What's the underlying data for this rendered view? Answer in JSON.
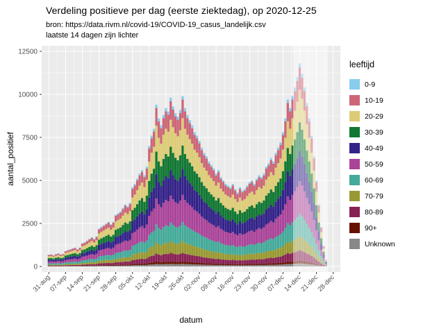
{
  "title": "Verdeling positieve per dag (eerste ziektedag), op 2020-12-25",
  "subtitle_source": "bron: https://data.rivm.nl/covid-19/COVID-19_casus_landelijk.csv",
  "subtitle_note": "laatste 14 dagen zijn lichter",
  "axes": {
    "x_label": "datum",
    "y_label": "aantal_positief"
  },
  "panel": {
    "bg": "#EBEBEB",
    "grid": "#FFFFFF",
    "tick_color": "#333333",
    "tick_text_color": "#4D4D4D"
  },
  "legend": {
    "title": "leeftijd",
    "entries": [
      {
        "label": "0-9",
        "color": "#88CCEE"
      },
      {
        "label": "10-19",
        "color": "#CC6677"
      },
      {
        "label": "20-29",
        "color": "#DDCC77"
      },
      {
        "label": "30-39",
        "color": "#117733"
      },
      {
        "label": "40-49",
        "color": "#332288"
      },
      {
        "label": "50-59",
        "color": "#AA4499"
      },
      {
        "label": "60-69",
        "color": "#44AA99"
      },
      {
        "label": "70-79",
        "color": "#999933"
      },
      {
        "label": "80-89",
        "color": "#882255"
      },
      {
        "label": "90+",
        "color": "#661100"
      },
      {
        "label": "Unknown",
        "color": "#888888"
      }
    ]
  },
  "chart_data": {
    "type": "bar",
    "stacked": true,
    "x_start_date": "2020-08-31",
    "x_end_date": "2020-12-25",
    "ylim": [
      0,
      12500
    ],
    "y_ticks": [
      0,
      2500,
      5000,
      7500,
      10000,
      12500
    ],
    "x_ticks": [
      {
        "label": "31-aug",
        "day": 0
      },
      {
        "label": "07-sep",
        "day": 7
      },
      {
        "label": "14-sep",
        "day": 14
      },
      {
        "label": "21-sep",
        "day": 21
      },
      {
        "label": "28-sep",
        "day": 28
      },
      {
        "label": "05-okt",
        "day": 35
      },
      {
        "label": "12-okt",
        "day": 42
      },
      {
        "label": "19-okt",
        "day": 49
      },
      {
        "label": "26-okt",
        "day": 56
      },
      {
        "label": "02-nov",
        "day": 63
      },
      {
        "label": "09-nov",
        "day": 70
      },
      {
        "label": "16-nov",
        "day": 77
      },
      {
        "label": "23-nov",
        "day": 84
      },
      {
        "label": "30-nov",
        "day": 91
      },
      {
        "label": "07-dec",
        "day": 98
      },
      {
        "label": "14-dec",
        "day": 105
      },
      {
        "label": "21-dec",
        "day": 112
      },
      {
        "label": "28-dec",
        "day": 119
      }
    ],
    "faded_last_days": 14,
    "totals_per_day": [
      680,
      700,
      650,
      720,
      760,
      700,
      730,
      900,
      950,
      1000,
      1050,
      1100,
      1000,
      1100,
      1350,
      1400,
      1500,
      1600,
      1700,
      1600,
      1750,
      2200,
      2300,
      2400,
      2500,
      2600,
      2450,
      2600,
      3000,
      3100,
      3200,
      3400,
      3600,
      3500,
      3700,
      4600,
      4800,
      5100,
      5400,
      5600,
      5300,
      5800,
      7000,
      7600,
      8000,
      9400,
      8600,
      8200,
      8800,
      9200,
      9000,
      9800,
      9300,
      8900,
      8700,
      9100,
      9900,
      9200,
      8800,
      8500,
      8200,
      7800,
      7600,
      7300,
      6900,
      6600,
      6400,
      6100,
      5900,
      5700,
      5400,
      5600,
      5200,
      5000,
      4800,
      4700,
      4600,
      4800,
      4500,
      4300,
      4600,
      4400,
      4500,
      4700,
      4900,
      5000,
      4800,
      5100,
      5300,
      5200,
      5400,
      5800,
      6000,
      6300,
      6100,
      6600,
      6900,
      7200,
      7800,
      8600,
      9700,
      9200,
      9900,
      10400,
      11000,
      11800,
      11200,
      10400,
      9500,
      8600,
      7600,
      6400,
      5000,
      3600,
      2300,
      1200,
      400
    ],
    "stack_bottom_to_top": [
      "Unknown",
      "90+",
      "80-89",
      "70-79",
      "60-69",
      "50-59",
      "40-49",
      "30-39",
      "20-29",
      "10-19",
      "0-9"
    ],
    "age_share_estimate": {
      "0-9": 0.02,
      "10-19": 0.11,
      "20-29": 0.16,
      "30-39": 0.14,
      "40-49": 0.15,
      "50-59": 0.16,
      "60-69": 0.11,
      "70-79": 0.07,
      "80-89": 0.05,
      "90+": 0.015,
      "Unknown": 0.015
    }
  }
}
